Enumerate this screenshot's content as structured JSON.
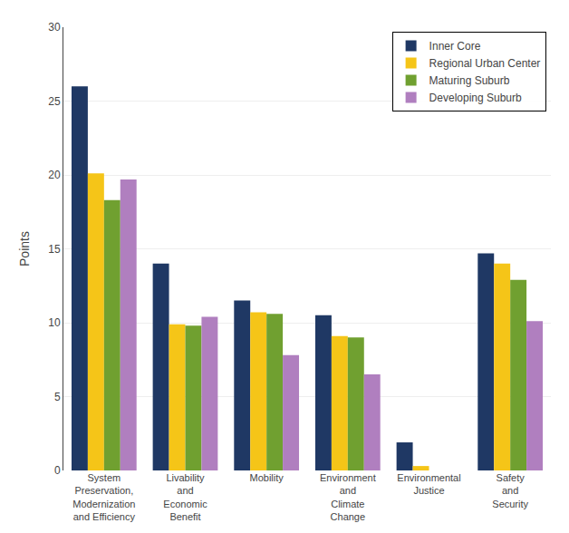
{
  "chart_data": {
    "type": "bar",
    "ylabel": "Points",
    "categories": [
      "System\nPreservation,\nModernization\nand Efficiency",
      "Livability\nand\nEconomic\nBenefit",
      "Mobility",
      "Environment\nand\nClimate\nChange",
      "Environmental\nJustice",
      "Safety\nand\nSecurity"
    ],
    "series": [
      {
        "name": "Inner Core",
        "color": "#1F3864",
        "values": [
          26.0,
          14.0,
          11.5,
          10.5,
          1.9,
          14.7
        ]
      },
      {
        "name": "Regional Urban Center",
        "color": "#F5C518",
        "values": [
          20.1,
          9.9,
          10.7,
          9.1,
          0.3,
          14.0
        ]
      },
      {
        "name": "Maturing Suburb",
        "color": "#70A030",
        "values": [
          18.3,
          9.8,
          10.6,
          9.0,
          0.0,
          12.9
        ]
      },
      {
        "name": "Developing Suburb",
        "color": "#B07FBF",
        "values": [
          19.7,
          10.4,
          7.8,
          6.5,
          0.0,
          10.1
        ]
      }
    ],
    "ylim": [
      0,
      30
    ],
    "yticks": [
      0,
      5,
      10,
      15,
      20,
      25,
      30
    ],
    "grid": true,
    "legend": "upper right"
  }
}
